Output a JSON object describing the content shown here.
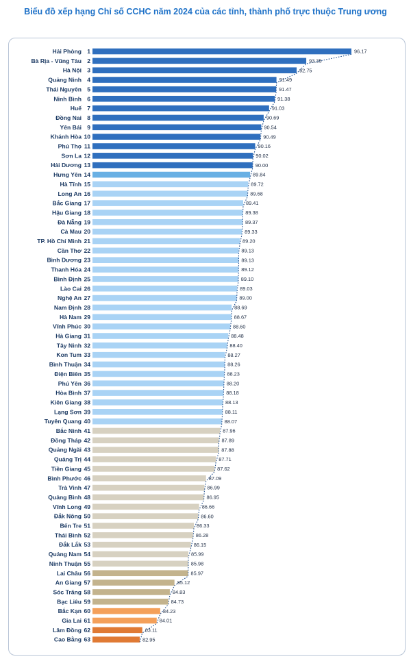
{
  "title": "Biểu đồ xếp hạng Chỉ số CCHC năm 2024 của các tỉnh, thành phố trực thuộc Trung ương",
  "colors": {
    "top": "#2f6fbe",
    "blue": "#69b0e4",
    "lightblue": "#a9d3f5",
    "beige": "#d7d1c1",
    "tan": "#c3b38d",
    "orange": "#f4a05a",
    "darkorange": "#e07a34"
  },
  "chart_data": {
    "type": "bar",
    "orientation": "horizontal",
    "title": "Biểu đồ xếp hạng Chỉ số CCHC năm 2024 của các tỉnh, thành phố trực thuộc Trung ương",
    "xlabel": "",
    "ylabel": "",
    "xlim": [
      80,
      97
    ],
    "grid": false,
    "categories": [
      "Hải Phòng",
      "Bà Rịa - Vũng Tàu",
      "Hà Nội",
      "Quảng Ninh",
      "Thái Nguyên",
      "Ninh Bình",
      "Huế",
      "Đồng Nai",
      "Yên Bái",
      "Khánh Hòa",
      "Phú Thọ",
      "Sơn La",
      "Hải Dương",
      "Hưng Yên",
      "Hà Tĩnh",
      "Long An",
      "Bắc Giang",
      "Hậu Giang",
      "Đà Nẵng",
      "Cà Mau",
      "TP. Hồ Chí Minh",
      "Cần Thơ",
      "Bình Dương",
      "Thanh Hóa",
      "Bình Định",
      "Lào Cai",
      "Nghệ An",
      "Nam Định",
      "Hà Nam",
      "Vĩnh Phúc",
      "Hà Giang",
      "Tây Ninh",
      "Kon Tum",
      "Bình Thuận",
      "Điện Biên",
      "Phú Yên",
      "Hòa Bình",
      "Kiên Giang",
      "Lạng Sơn",
      "Tuyên Quang",
      "Bắc Ninh",
      "Đồng Tháp",
      "Quảng Ngãi",
      "Quảng Trị",
      "Tiền Giang",
      "Bình Phước",
      "Trà Vinh",
      "Quảng Bình",
      "Vĩnh Long",
      "Đắk Nông",
      "Bến Tre",
      "Thái Bình",
      "Đắk Lắk",
      "Quảng Nam",
      "Ninh Thuận",
      "Lai Châu",
      "An Giang",
      "Sóc Trăng",
      "Bạc Liêu",
      "Bắc Kạn",
      "Gia Lai",
      "Lâm Đồng",
      "Cao Bằng"
    ],
    "ranks": [
      "1",
      "2",
      "3",
      "4",
      "5",
      "6",
      "7",
      "8",
      "9",
      "10",
      "11",
      "12",
      "13",
      "14",
      "15",
      "16",
      "17",
      "18",
      "19",
      "20",
      "21",
      "22",
      "23",
      "24",
      "25",
      "26",
      "27",
      "28",
      "29",
      "30",
      "31",
      "32",
      "33",
      "34",
      "35",
      "36",
      "37",
      "38",
      "39",
      "40",
      "41",
      "42",
      "43",
      "44",
      "45",
      "46",
      "47",
      "48",
      "49",
      "50",
      "51",
      "52",
      "53",
      "54",
      "55",
      "56",
      "57",
      "58",
      "59",
      "60",
      "61",
      "62",
      "63"
    ],
    "values": [
      96.17,
      93.35,
      92.75,
      91.49,
      91.47,
      91.38,
      91.03,
      90.69,
      90.54,
      90.49,
      90.16,
      90.02,
      90.0,
      89.84,
      89.72,
      89.68,
      89.41,
      89.38,
      89.37,
      89.33,
      89.2,
      89.13,
      89.13,
      89.12,
      89.1,
      89.03,
      89.0,
      88.69,
      88.67,
      88.6,
      88.48,
      88.4,
      88.27,
      88.26,
      88.23,
      88.2,
      88.18,
      88.13,
      88.11,
      88.07,
      87.96,
      87.89,
      87.88,
      87.71,
      87.62,
      87.09,
      86.99,
      86.95,
      86.66,
      86.6,
      86.33,
      86.28,
      86.15,
      85.99,
      85.98,
      85.97,
      85.12,
      84.83,
      84.73,
      84.23,
      84.01,
      83.11,
      82.95
    ],
    "value_labels": [
      "96.17",
      "93.35",
      "92.75",
      "91.49",
      "91.47",
      "91.38",
      "91.03",
      "90.69",
      "90.54",
      "90.49",
      "90.16",
      "90.02",
      "90.00",
      "89.84",
      "89.72",
      "89.68",
      "89.41",
      "89.38",
      "89.37",
      "89.33",
      "89.20",
      "89.13",
      "89.13",
      "89.12",
      "89.10",
      "89.03",
      "89.00",
      "88.69",
      "88.67",
      "88.60",
      "88.48",
      "88.40",
      "88.27",
      "88.26",
      "88.23",
      "88.20",
      "88.18",
      "88.13",
      "88.11",
      "88.07",
      "87.96",
      "87.89",
      "87.88",
      "87.71",
      "87.62",
      "87.09",
      "86.99",
      "86.95",
      "86.66",
      "86.60",
      "86.33",
      "86.28",
      "86.15",
      "85.99",
      "85.98",
      "85.97",
      "85.12",
      "84.83",
      "84.73",
      "84.23",
      "84.01",
      "83.11",
      "82.95"
    ],
    "groups": [
      {
        "color": "top",
        "from": 0,
        "to": 12
      },
      {
        "color": "blue",
        "from": 13,
        "to": 13
      },
      {
        "color": "lightblue",
        "from": 14,
        "to": 39
      },
      {
        "color": "beige",
        "from": 40,
        "to": 54
      },
      {
        "color": "tan",
        "from": 55,
        "to": 58
      },
      {
        "color": "orange",
        "from": 59,
        "to": 60
      },
      {
        "color": "darkorange",
        "from": 61,
        "to": 62
      }
    ],
    "trend_line": "dotted"
  }
}
